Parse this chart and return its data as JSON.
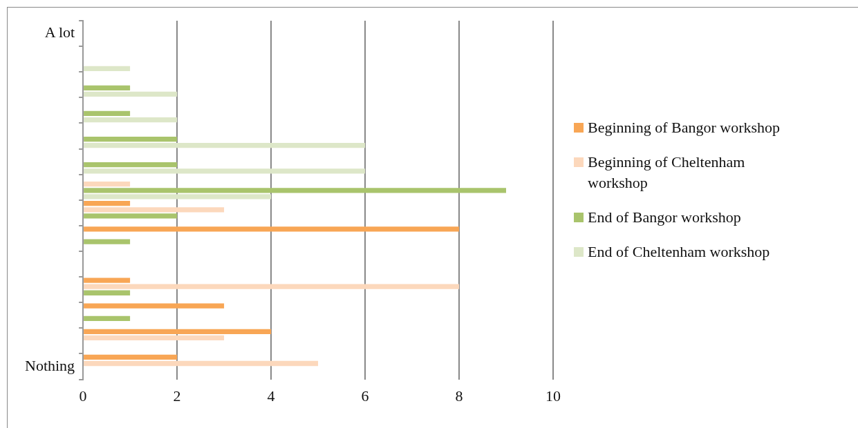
{
  "chart_data": {
    "type": "bar",
    "orientation": "horizontal",
    "categories": [
      "A lot",
      null,
      null,
      null,
      null,
      null,
      null,
      null,
      null,
      null,
      null,
      null,
      null,
      "Nothing"
    ],
    "series": [
      {
        "name": "Beginning of Bangor workshop",
        "color": "#f8a655",
        "values": [
          null,
          null,
          null,
          null,
          null,
          null,
          null,
          1,
          8,
          null,
          1,
          3,
          4,
          2
        ]
      },
      {
        "name": "Beginning of Cheltenham workshop",
        "color": "#fcd8bc",
        "values": [
          null,
          null,
          null,
          null,
          null,
          null,
          1,
          3,
          null,
          null,
          8,
          null,
          3,
          5
        ]
      },
      {
        "name": "End of Bangor workshop",
        "color": "#a9c46c",
        "values": [
          null,
          null,
          1,
          1,
          2,
          2,
          9,
          2,
          1,
          null,
          1,
          1,
          null,
          null
        ]
      },
      {
        "name": "End of Cheltenham workshop",
        "color": "#dde7c8",
        "values": [
          null,
          1,
          2,
          2,
          6,
          6,
          4,
          null,
          null,
          null,
          null,
          null,
          null,
          null
        ]
      }
    ],
    "xlim": [
      0,
      10
    ],
    "xticks": [
      0,
      2,
      4,
      6,
      8,
      10
    ],
    "grid": "x",
    "legend": "right"
  }
}
